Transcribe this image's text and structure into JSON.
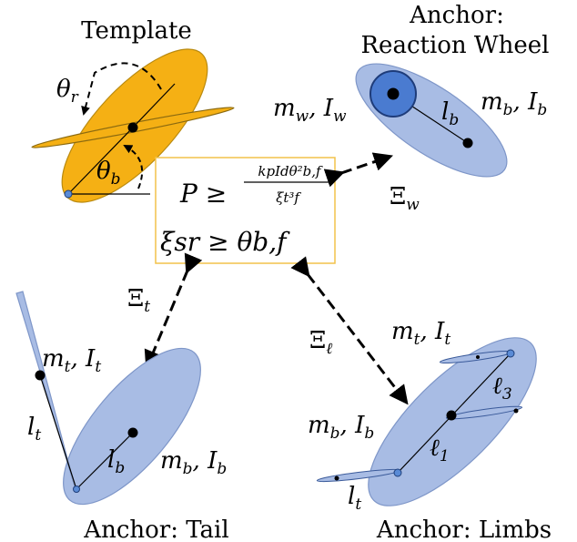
{
  "panels": {
    "template": {
      "title": "Template",
      "theta_r": "θ",
      "theta_r_sub": "r",
      "theta_b": "θ",
      "theta_b_sub": "b"
    },
    "reaction_wheel": {
      "title_line1": "Anchor:",
      "title_line2": "Reaction Wheel",
      "mw": "m",
      "mw_sub": "w",
      "Iw": "I",
      "Iw_sub": "w",
      "lb": "l",
      "lb_sub": "b",
      "mb": "m",
      "mb_sub": "b",
      "Ib": "I",
      "Ib_sub": "b"
    },
    "tail": {
      "title": "Anchor: Tail",
      "mt": "m",
      "mt_sub": "t",
      "It": "I",
      "It_sub": "t",
      "lt": "l",
      "lt_sub": "t",
      "lb": "l",
      "lb_sub": "b",
      "mb": "m",
      "mb_sub": "b",
      "Ib": "I",
      "Ib_sub": "b"
    },
    "limbs": {
      "title": "Anchor: Limbs",
      "mt": "m",
      "mt_sub": "t",
      "It": "I",
      "It_sub": "t",
      "l3": "ℓ",
      "l3_sub": "3",
      "mb": "m",
      "mb_sub": "b",
      "Ib": "I",
      "Ib_sub": "b",
      "l1": "ℓ",
      "l1_sub": "1",
      "lt": "l",
      "lt_sub": "t"
    }
  },
  "equations": {
    "power_lhs": "P ≥",
    "power_num": "kpIdθ²b,f",
    "power_den": "ξt³f",
    "range": "ξsr ≥ θb,f"
  },
  "links": {
    "xi_w": "Ξ",
    "xi_w_sub": "w",
    "xi_t": "Ξ",
    "xi_t_sub": "t",
    "xi_l": "Ξ",
    "xi_l_sub": "ℓ"
  },
  "colors": {
    "template_fill": "#F5B014",
    "anchor_fill": "#A8BCE4",
    "wheel_fill": "#4A7BD0",
    "box_border": "#F2C24A"
  }
}
